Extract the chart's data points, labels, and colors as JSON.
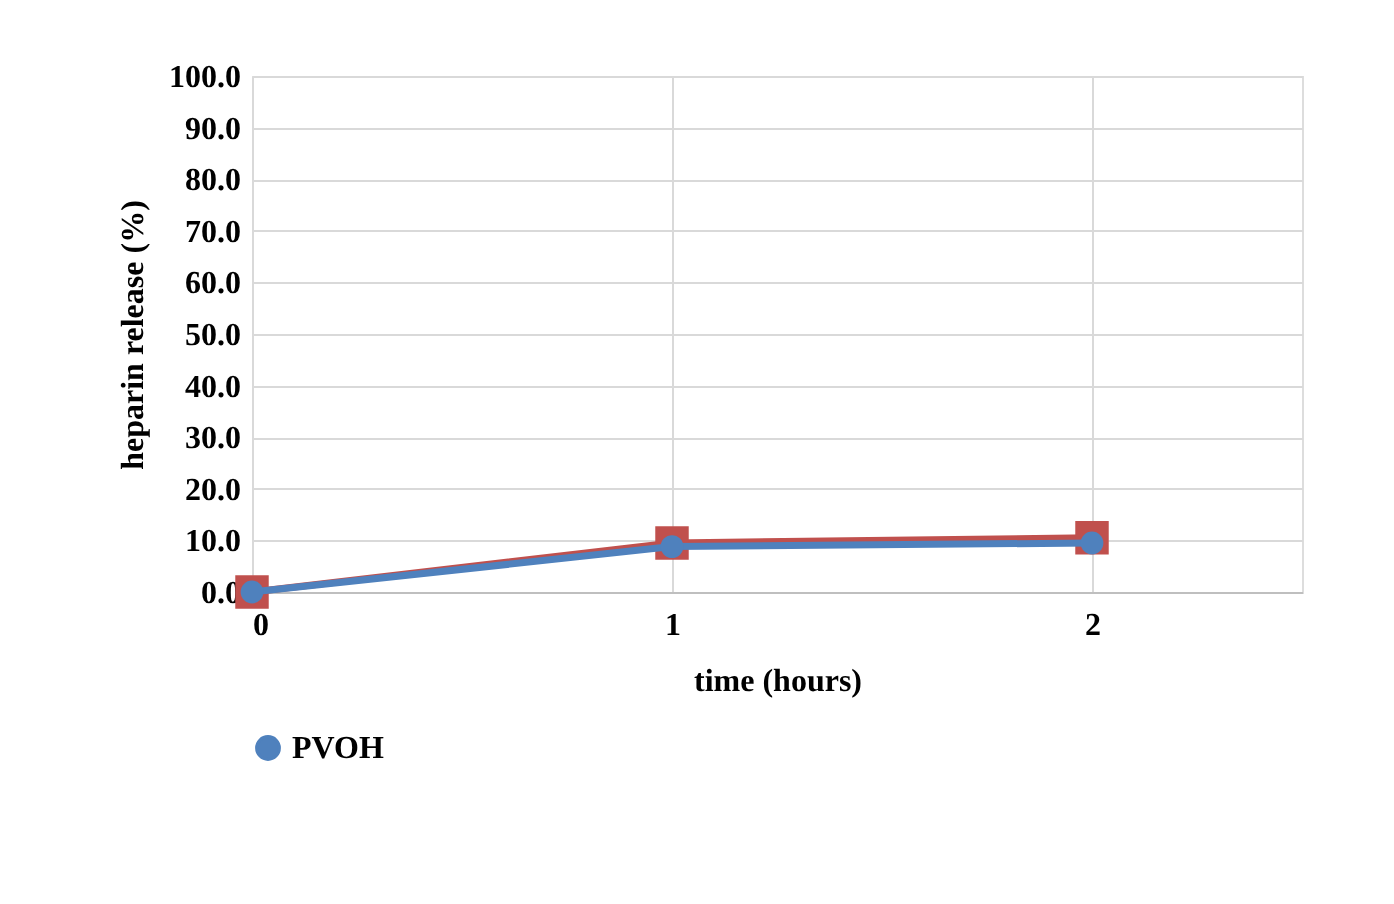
{
  "chart_data": {
    "type": "line",
    "xlabel": "time (hours)",
    "ylabel": "heparin release (%)",
    "x": [
      0,
      1,
      2
    ],
    "series": [
      {
        "color": "#c0504d",
        "marker": "square",
        "values": [
          0,
          9.5,
          10.5
        ]
      },
      {
        "name": "PVOH",
        "color": "#4f81bd",
        "marker": "circle",
        "values": [
          0,
          8.8,
          9.5
        ]
      }
    ],
    "xlim": [
      0,
      2.5
    ],
    "xticks": [
      0,
      1,
      2
    ],
    "ylim": [
      0,
      100
    ],
    "yticks": [
      {
        "value": 0,
        "label": "0.0"
      },
      {
        "value": 10,
        "label": "10.0"
      },
      {
        "value": 20,
        "label": "20.0"
      },
      {
        "value": 30,
        "label": "30.0"
      },
      {
        "value": 40,
        "label": "40.0"
      },
      {
        "value": 50,
        "label": "50.0"
      },
      {
        "value": 60,
        "label": "60.0"
      },
      {
        "value": 70,
        "label": "70.0"
      },
      {
        "value": 80,
        "label": "80.0"
      },
      {
        "value": 90,
        "label": "90.0"
      },
      {
        "value": 100,
        "label": "100.0"
      }
    ],
    "grid": true,
    "legend": "bottom",
    "line_style": "solid"
  }
}
